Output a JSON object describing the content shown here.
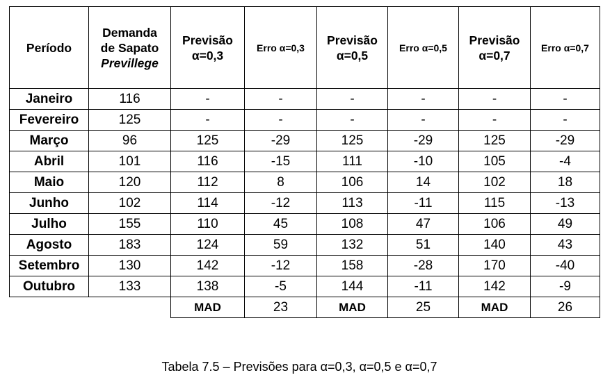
{
  "table": {
    "headers": {
      "period": "Período",
      "demand_line1": "Demanda",
      "demand_line2": "de Sapato",
      "demand_line3": "Previllege",
      "forecast_03_line1": "Previsão",
      "forecast_03_line2": "α=0,3",
      "error_03": "Erro α=0,3",
      "forecast_05_line1": "Previsão",
      "forecast_05_line2": "α=0,5",
      "error_05": "Erro α=0,5",
      "forecast_07_line1": "Previsão",
      "forecast_07_line2": "α=0,7",
      "error_07": "Erro α=0,7"
    },
    "rows": [
      [
        "Janeiro",
        "116",
        "-",
        "-",
        "-",
        "-",
        "-",
        "-"
      ],
      [
        "Fevereiro",
        "125",
        "-",
        "-",
        "-",
        "-",
        "-",
        "-"
      ],
      [
        "Março",
        "96",
        "125",
        "-29",
        "125",
        "-29",
        "125",
        "-29"
      ],
      [
        "Abril",
        "101",
        "116",
        "-15",
        "111",
        "-10",
        "105",
        "-4"
      ],
      [
        "Maio",
        "120",
        "112",
        "8",
        "106",
        "14",
        "102",
        "18"
      ],
      [
        "Junho",
        "102",
        "114",
        "-12",
        "113",
        "-11",
        "115",
        "-13"
      ],
      [
        "Julho",
        "155",
        "110",
        "45",
        "108",
        "47",
        "106",
        "49"
      ],
      [
        "Agosto",
        "183",
        "124",
        "59",
        "132",
        "51",
        "140",
        "43"
      ],
      [
        "Setembro",
        "130",
        "142",
        "-12",
        "158",
        "-28",
        "170",
        "-40"
      ],
      [
        "Outubro",
        "133",
        "138",
        "-5",
        "144",
        "-11",
        "142",
        "-9"
      ]
    ],
    "mad": {
      "label_03": "MAD",
      "value_03": "23",
      "label_05": "MAD",
      "value_05": "25",
      "label_07": "MAD",
      "value_07": "26"
    }
  },
  "caption": "Tabela 7.5 – Previsões para α=0,3, α=0,5 e α=0,7"
}
